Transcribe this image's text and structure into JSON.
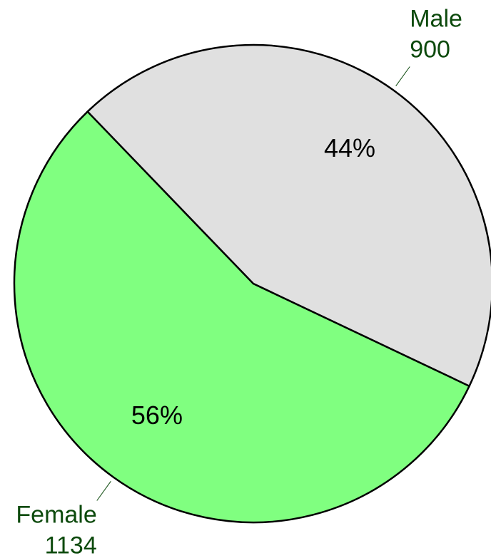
{
  "chart_data": {
    "type": "pie",
    "categories": [
      "Female",
      "Male"
    ],
    "values": [
      1134,
      900
    ],
    "percent_labels": [
      "56%",
      "44%"
    ],
    "colors": [
      "#80ff80",
      "#e0e0e0"
    ]
  }
}
